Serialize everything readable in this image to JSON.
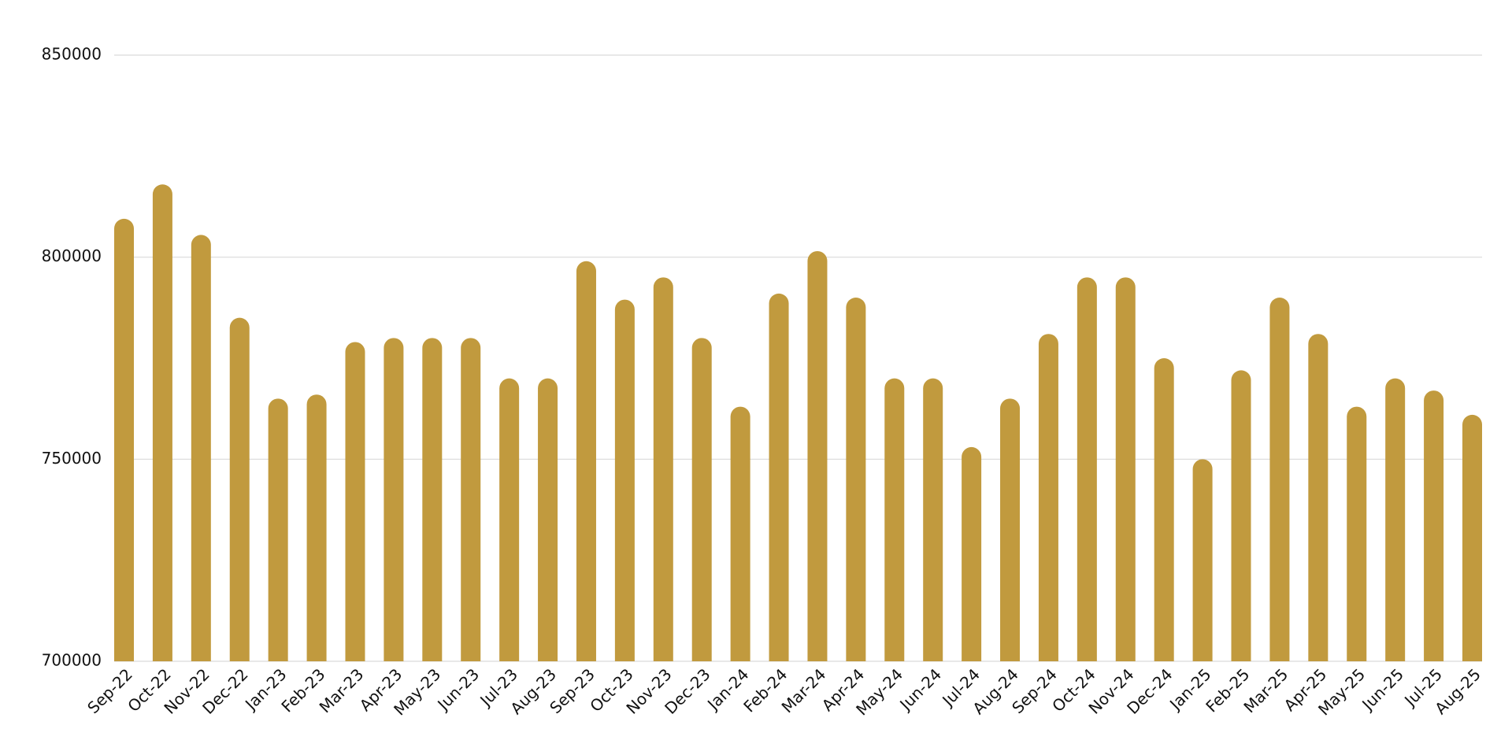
{
  "chart_data": {
    "type": "bar",
    "categories": [
      "Sep-22",
      "Oct-22",
      "Nov-22",
      "Dec-22",
      "Jan-23",
      "Feb-23",
      "Mar-23",
      "Apr-23",
      "May-23",
      "Jun-23",
      "Jul-23",
      "Aug-23",
      "Sep-23",
      "Oct-23",
      "Nov-23",
      "Dec-23",
      "Jan-24",
      "Feb-24",
      "Mar-24",
      "Apr-24",
      "May-24",
      "Jun-24",
      "Jul-24",
      "Aug-24",
      "Sep-24",
      "Oct-24",
      "Nov-24",
      "Dec-24",
      "Jan-25",
      "Feb-25",
      "Mar-25",
      "Apr-25",
      "May-25",
      "Jun-25",
      "Jul-25",
      "Aug-25"
    ],
    "values": [
      809500,
      818000,
      805500,
      785000,
      765000,
      766000,
      779000,
      780000,
      780000,
      780000,
      770000,
      770000,
      799000,
      789500,
      795000,
      780000,
      763000,
      791000,
      801500,
      790000,
      770000,
      770000,
      753000,
      765000,
      781000,
      795000,
      795000,
      775000,
      750000,
      772000,
      790000,
      781000,
      763000,
      770000,
      767000,
      761000
    ],
    "color": "#c19a3e",
    "ylim": [
      700000,
      850000
    ],
    "yticks": [
      700000,
      750000,
      800000,
      850000
    ],
    "grid": true
  }
}
